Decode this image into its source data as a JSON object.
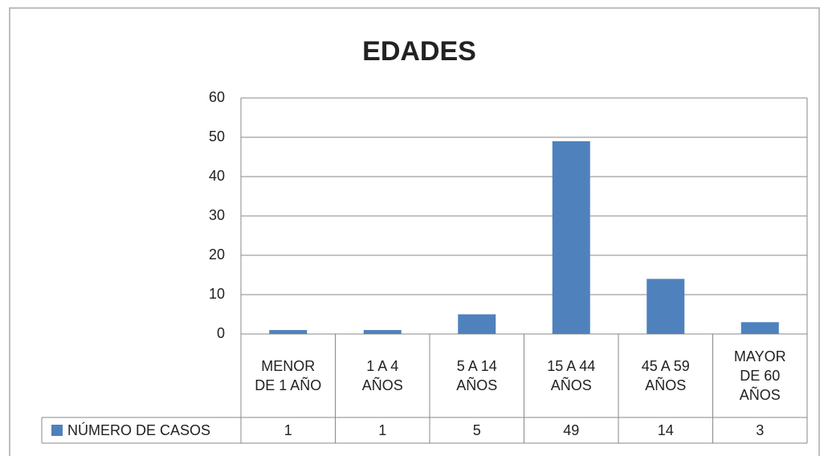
{
  "chart_data": {
    "type": "bar",
    "title": "EDADES",
    "categories": [
      "MENOR DE 1 AÑO",
      "1 A 4 AÑOS",
      "5 A 14 AÑOS",
      "15 A 44 AÑOS",
      "45 A 59 AÑOS",
      "MAYOR DE 60 AÑOS"
    ],
    "series": [
      {
        "name": "NÚMERO DE CASOS",
        "color": "#4f81bd",
        "values": [
          1,
          1,
          5,
          49,
          14,
          3
        ]
      }
    ],
    "ylim": [
      0,
      60
    ],
    "yticks": [
      0,
      10,
      20,
      30,
      40,
      50,
      60
    ],
    "grid": true,
    "data_table": true
  }
}
